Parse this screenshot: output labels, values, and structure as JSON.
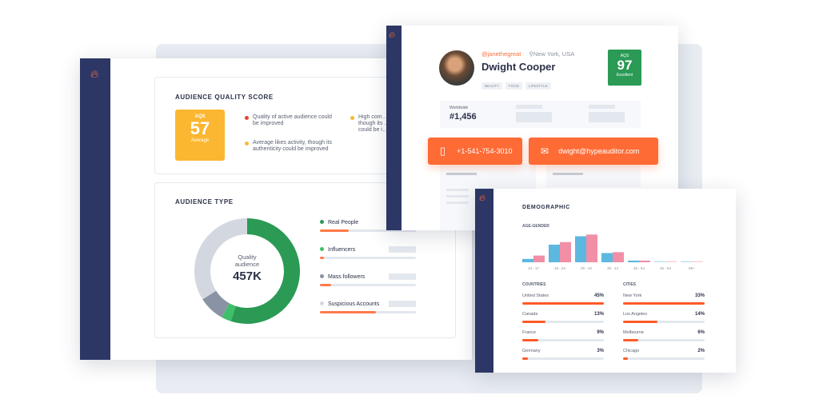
{
  "aqs_card": {
    "title": "AUDIENCE QUALITY SCORE",
    "badge": {
      "label": "AQS",
      "score": "57",
      "rating": "Average",
      "color": "#fbb731"
    },
    "notes": [
      {
        "text": "Quality of active audience could be improved",
        "color": "#e8452c"
      },
      {
        "text": "Average likes activity, though its authenticity could be improved",
        "color": "#fbb731"
      },
      {
        "text": "High com… though its … could be i…",
        "color": "#fbb731"
      }
    ]
  },
  "audience_type": {
    "title": "AUDIENCE TYPE",
    "center_label": "Quality audience",
    "center_value": "457K",
    "items": [
      {
        "label": "Real People",
        "dot": "#2a9a55",
        "share": 55,
        "bar": 30
      },
      {
        "label": "Influencers",
        "dot": "#3fbf6a",
        "share": 3,
        "bar": 3
      },
      {
        "label": "Mass followers",
        "dot": "#8a93a3",
        "share": 8,
        "bar": 12
      },
      {
        "label": "Suspicious Accounts",
        "dot": "#d3d8e0",
        "share": 34,
        "bar": 58
      }
    ]
  },
  "profile": {
    "handle": "@janethegreat",
    "location": "New York, USA",
    "name": "Dwight Cooper",
    "tags": [
      "BEAUTY",
      "FOOD",
      "LIFESTYLE"
    ],
    "badge": {
      "label": "AQS",
      "score": "97",
      "rating": "Excellent",
      "color": "#2a9a55"
    },
    "rank_label": "Worldwide",
    "rank_value": "#1,456",
    "phone": "+1-541-754-3010",
    "email": "dwight@hypeauditor.com"
  },
  "demographic": {
    "title": "DEMOGRAPHIC",
    "age_gender_label": "AGE-GENDER",
    "chart_data": {
      "type": "bar",
      "categories": [
        "13 - 17",
        "18 - 24",
        "25 - 34",
        "35 - 44",
        "45 - 54",
        "45 - 54",
        "65+"
      ],
      "series": [
        {
          "color": "#5cb8e0",
          "values": [
            4,
            21,
            31,
            11,
            2,
            1,
            1
          ]
        },
        {
          "color": "#f08fa6",
          "values": [
            8,
            24,
            33,
            12,
            2,
            1,
            1
          ]
        }
      ]
    },
    "countries_label": "COUNTRIES",
    "countries": [
      {
        "name": "United States",
        "pct": "45%",
        "value": 45
      },
      {
        "name": "Canada",
        "pct": "13%",
        "value": 13
      },
      {
        "name": "France",
        "pct": "9%",
        "value": 9
      },
      {
        "name": "Germany",
        "pct": "3%",
        "value": 3
      }
    ],
    "cities_label": "CITIES",
    "cities": [
      {
        "name": "New York",
        "pct": "33%",
        "value": 33
      },
      {
        "name": "Los Angeles",
        "pct": "14%",
        "value": 14
      },
      {
        "name": "Melbourne",
        "pct": "6%",
        "value": 6
      },
      {
        "name": "Chicago",
        "pct": "2%",
        "value": 2
      }
    ]
  }
}
